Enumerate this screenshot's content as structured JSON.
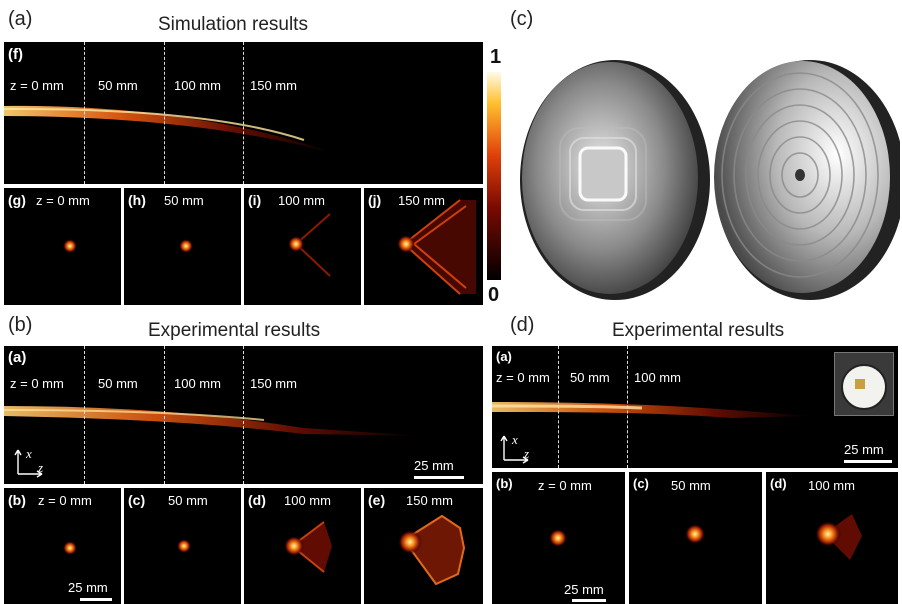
{
  "panel_a": {
    "label": "(a)",
    "title": "Simulation results",
    "long": {
      "tag": "(f)",
      "z_labels": [
        "z = 0 mm",
        "50 mm",
        "100 mm",
        "150 mm"
      ]
    },
    "small": [
      {
        "tag": "(g)",
        "z": "z = 0 mm"
      },
      {
        "tag": "(h)",
        "z": "50 mm"
      },
      {
        "tag": "(i)",
        "z": "100 mm"
      },
      {
        "tag": "(j)",
        "z": "150 mm"
      }
    ]
  },
  "colorbar": {
    "max": "1",
    "min": "0"
  },
  "panel_c": {
    "label": "(c)"
  },
  "panel_b": {
    "label": "(b)",
    "title": "Experimental results",
    "long": {
      "tag": "(a)",
      "z_labels": [
        "z = 0 mm",
        "50 mm",
        "100 mm",
        "150 mm"
      ],
      "scale": "25 mm",
      "axis_x": "x",
      "axis_z": "z"
    },
    "small": [
      {
        "tag": "(b)",
        "z": "z = 0 mm"
      },
      {
        "tag": "(c)",
        "z": "50 mm"
      },
      {
        "tag": "(d)",
        "z": "100 mm"
      },
      {
        "tag": "(e)",
        "z": "150 mm"
      }
    ],
    "small_scale": "25 mm"
  },
  "panel_d": {
    "label": "(d)",
    "title": "Experimental results",
    "long": {
      "tag": "(a)",
      "z_labels": [
        "z = 0 mm",
        "50 mm",
        "100 mm"
      ],
      "scale": "25 mm",
      "axis_x": "x",
      "axis_z": "z"
    },
    "small": [
      {
        "tag": "(b)",
        "z": "z = 0 mm"
      },
      {
        "tag": "(c)",
        "z": "50 mm"
      },
      {
        "tag": "(d)",
        "z": "100 mm"
      }
    ],
    "small_scale": "25 mm"
  }
}
